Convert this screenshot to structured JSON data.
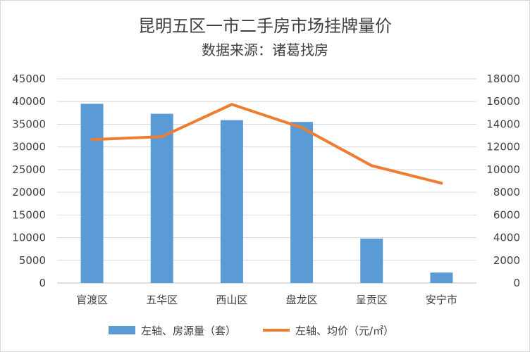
{
  "chart_data": {
    "type": "bar",
    "title": "昆明五区一市二手房市场挂牌量价",
    "subtitle": "数据来源：诸葛找房",
    "categories": [
      "官渡区",
      "五华区",
      "西山区",
      "盘龙区",
      "呈贡区",
      "安宁市"
    ],
    "series": [
      {
        "name": "左轴、房源量（套）",
        "type": "bar",
        "axis": "left",
        "color": "#5b9bd5",
        "values": [
          39500,
          37300,
          35900,
          35500,
          9800,
          2300
        ]
      },
      {
        "name": "左轴、均价（元/㎡）",
        "type": "line",
        "axis": "right",
        "color": "#ed7d31",
        "values": [
          12650,
          12900,
          15750,
          13700,
          10350,
          8800
        ]
      }
    ],
    "y_left": {
      "lim": [
        0,
        45000
      ],
      "ticks": [
        "0",
        "5000",
        "10000",
        "15000",
        "20000",
        "25000",
        "30000",
        "35000",
        "40000",
        "45000"
      ]
    },
    "y_right": {
      "lim": [
        0,
        18000
      ],
      "ticks": [
        "0",
        "2000",
        "4000",
        "6000",
        "8000",
        "10000",
        "12000",
        "14000",
        "16000",
        "18000"
      ]
    },
    "grid": true,
    "legend_position": "bottom"
  }
}
